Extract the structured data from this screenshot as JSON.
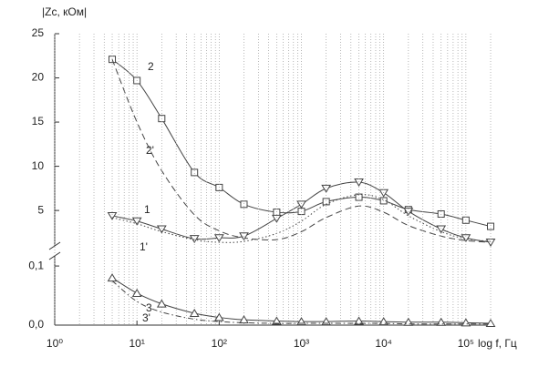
{
  "chart_data": [
    {
      "type": "line",
      "y_label": "|Zc, кОм|",
      "xlog": true,
      "xlim": [
        1,
        200000
      ],
      "ylim": [
        1.2,
        25
      ],
      "yticks": [
        5,
        10,
        15,
        20,
        25
      ],
      "x": [
        5,
        10,
        20,
        50,
        100,
        200,
        500,
        1000,
        2000,
        5000,
        10000,
        20000,
        50000,
        100000,
        200000
      ],
      "series": [
        {
          "name": "2",
          "color": "#444",
          "dash": "solid",
          "marker": "square",
          "values": [
            22.1,
            19.7,
            15.4,
            9.3,
            7.6,
            5.7,
            4.8,
            4.9,
            6.0,
            6.5,
            6.1,
            5.1,
            4.6,
            3.9,
            3.2
          ]
        },
        {
          "name": "2'",
          "color": "#444",
          "dash": "dashed",
          "marker": "none",
          "values": [
            22.1,
            15,
            9.5,
            4.5,
            2.7,
            1.9,
            1.7,
            2.6,
            4.2,
            5.5,
            4.8,
            3.3,
            2.1,
            1.6,
            1.4
          ]
        },
        {
          "name": "1",
          "color": "#444",
          "dash": "solid",
          "marker": "triangle-down",
          "values": [
            4.4,
            3.8,
            2.9,
            1.8,
            1.9,
            2.1,
            4.1,
            5.7,
            7.5,
            8.2,
            7.0,
            4.9,
            2.9,
            1.9,
            1.4
          ]
        },
        {
          "name": "1'",
          "color": "#444",
          "dash": "dotted",
          "marker": "none",
          "values": [
            4.2,
            3.5,
            2.6,
            1.7,
            1.4,
            1.5,
            2.4,
            3.8,
            5.7,
            6.8,
            6.2,
            4.4,
            2.6,
            1.8,
            1.5
          ]
        }
      ]
    },
    {
      "type": "line",
      "x_label": "log f, Гц",
      "xlog": true,
      "xlim": [
        1,
        200000
      ],
      "ylim": [
        0,
        0.114
      ],
      "yticks": [
        {
          "value": 0,
          "label": "0,0"
        },
        {
          "value": 0.1,
          "label": "0,1"
        }
      ],
      "xticks": [
        {
          "value": 1,
          "label": "10⁰"
        },
        {
          "value": 10,
          "label": "10¹"
        },
        {
          "value": 100,
          "label": "10²"
        },
        {
          "value": 1000,
          "label": "10³"
        },
        {
          "value": 10000,
          "label": "10⁴"
        },
        {
          "value": 100000,
          "label": "10⁵"
        }
      ],
      "xminorticks": [
        2,
        3,
        4,
        5,
        6,
        7,
        8,
        9,
        20,
        30,
        40,
        50,
        60,
        70,
        80,
        90,
        200,
        300,
        400,
        500,
        600,
        700,
        800,
        900,
        2000,
        3000,
        4000,
        5000,
        6000,
        7000,
        8000,
        9000,
        20000,
        30000,
        40000,
        50000,
        60000,
        70000,
        80000,
        90000,
        200000
      ],
      "grid": "x",
      "x": [
        5,
        10,
        20,
        50,
        100,
        200,
        500,
        1000,
        2000,
        5000,
        10000,
        20000,
        50000,
        100000,
        200000
      ],
      "series": [
        {
          "name": "3",
          "color": "#444",
          "dash": "solid",
          "marker": "triangle-up",
          "values": [
            0.08,
            0.054,
            0.036,
            0.02,
            0.013,
            0.009,
            0.007,
            0.006,
            0.006,
            0.007,
            0.006,
            0.005,
            0.005,
            0.004,
            0.003
          ]
        },
        {
          "name": "3'",
          "color": "#444",
          "dash": "dashdot",
          "marker": "none",
          "values": [
            0.075,
            0.04,
            0.022,
            0.01,
            0.006,
            0.004,
            0.003,
            0.003,
            0.003,
            0.003,
            0.003,
            0.002,
            0.002,
            0.002,
            0.002
          ]
        }
      ]
    }
  ]
}
